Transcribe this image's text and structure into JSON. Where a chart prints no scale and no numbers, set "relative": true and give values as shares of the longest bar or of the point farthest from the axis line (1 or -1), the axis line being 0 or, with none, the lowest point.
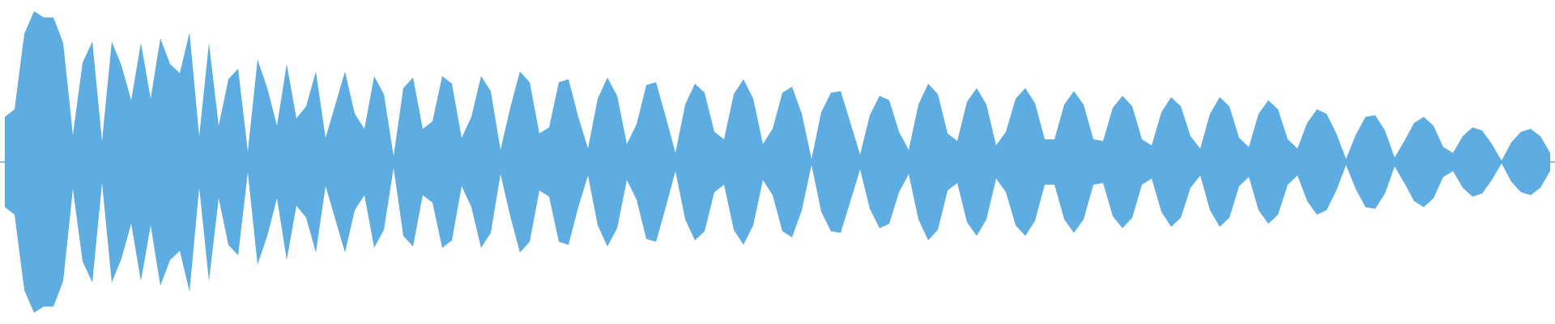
{
  "chart_data": {
    "type": "area",
    "relative": true,
    "ref_lines": [
      {
        "axis": "y",
        "value": 0,
        "color": "#5dade2"
      }
    ],
    "categories": [
      null,
      null,
      null,
      null,
      null,
      null,
      null,
      null,
      null,
      null,
      null,
      null,
      null,
      null,
      null,
      null,
      null,
      null,
      null,
      null,
      null,
      null,
      null,
      null,
      null,
      null,
      null,
      null,
      null,
      null,
      null,
      null,
      null,
      null,
      null,
      null,
      null,
      null,
      null,
      null,
      null,
      null,
      null,
      null,
      null,
      null,
      null,
      null,
      null,
      null,
      null,
      null,
      null,
      null,
      null,
      null,
      null,
      null,
      null,
      null,
      null,
      null,
      null,
      null,
      null,
      null,
      null,
      null,
      null,
      null,
      null,
      null,
      null,
      null,
      null,
      null,
      null,
      null,
      null,
      null,
      null,
      null,
      null,
      null,
      null,
      null,
      null,
      null,
      null,
      null,
      null,
      null,
      null,
      null,
      null,
      null,
      null,
      null,
      null,
      null,
      null,
      null,
      null,
      null,
      null,
      null,
      null,
      null,
      null,
      null,
      null,
      null,
      null,
      null,
      null,
      null,
      null,
      null,
      null,
      null,
      null,
      null,
      null,
      null,
      null,
      null,
      null,
      null,
      null,
      null,
      null,
      null,
      null,
      null,
      null,
      null,
      null,
      null,
      null,
      null,
      null,
      null,
      null,
      null,
      null,
      null,
      null,
      null,
      null,
      null,
      null,
      null,
      null,
      null,
      null,
      null,
      null,
      null,
      null,
      null
    ],
    "series": [
      {
        "color": "#5dade2",
        "values": [
          0.3,
          0.35,
          0.85,
          1.0,
          0.96,
          0.96,
          0.79,
          0.18,
          0.66,
          0.8,
          0.14,
          0.8,
          0.64,
          0.41,
          0.79,
          0.42,
          0.82,
          0.65,
          0.59,
          0.86,
          0.17,
          0.79,
          0.24,
          0.55,
          0.62,
          0.07,
          0.68,
          0.49,
          0.24,
          0.65,
          0.29,
          0.37,
          0.6,
          0.16,
          0.38,
          0.6,
          0.32,
          0.22,
          0.57,
          0.45,
          0.04,
          0.49,
          0.56,
          0.22,
          0.27,
          0.57,
          0.52,
          0.16,
          0.3,
          0.57,
          0.47,
          0.08,
          0.36,
          0.6,
          0.53,
          0.19,
          0.23,
          0.53,
          0.55,
          0.3,
          0.09,
          0.42,
          0.56,
          0.44,
          0.12,
          0.25,
          0.51,
          0.53,
          0.3,
          0.06,
          0.38,
          0.52,
          0.46,
          0.2,
          0.15,
          0.45,
          0.55,
          0.42,
          0.12,
          0.22,
          0.46,
          0.5,
          0.32,
          0.02,
          0.33,
          0.46,
          0.47,
          0.26,
          0.05,
          0.31,
          0.44,
          0.41,
          0.2,
          0.08,
          0.38,
          0.52,
          0.45,
          0.19,
          0.14,
          0.4,
          0.49,
          0.38,
          0.11,
          0.2,
          0.42,
          0.49,
          0.39,
          0.15,
          0.15,
          0.38,
          0.47,
          0.38,
          0.15,
          0.14,
          0.36,
          0.44,
          0.37,
          0.15,
          0.11,
          0.33,
          0.43,
          0.37,
          0.17,
          0.09,
          0.32,
          0.43,
          0.37,
          0.16,
          0.1,
          0.32,
          0.41,
          0.35,
          0.15,
          0.09,
          0.26,
          0.35,
          0.32,
          0.19,
          0.02,
          0.18,
          0.3,
          0.31,
          0.21,
          0.03,
          0.14,
          0.26,
          0.3,
          0.24,
          0.1,
          0.06,
          0.17,
          0.23,
          0.21,
          0.12,
          0.01,
          0.13,
          0.2,
          0.22,
          0.17,
          0.06
        ]
      },
      {
        "color": "#5dade2",
        "values": [
          -0.3,
          -0.35,
          -0.85,
          -1.0,
          -0.96,
          -0.96,
          -0.79,
          -0.18,
          -0.66,
          -0.8,
          -0.14,
          -0.8,
          -0.64,
          -0.41,
          -0.79,
          -0.42,
          -0.82,
          -0.65,
          -0.59,
          -0.86,
          -0.17,
          -0.79,
          -0.24,
          -0.55,
          -0.62,
          -0.07,
          -0.68,
          -0.49,
          -0.24,
          -0.65,
          -0.29,
          -0.37,
          -0.6,
          -0.16,
          -0.38,
          -0.6,
          -0.32,
          -0.22,
          -0.57,
          -0.45,
          -0.04,
          -0.49,
          -0.56,
          -0.22,
          -0.27,
          -0.57,
          -0.52,
          -0.16,
          -0.3,
          -0.57,
          -0.47,
          -0.08,
          -0.36,
          -0.6,
          -0.53,
          -0.19,
          -0.23,
          -0.53,
          -0.55,
          -0.3,
          -0.09,
          -0.42,
          -0.56,
          -0.44,
          -0.12,
          -0.25,
          -0.51,
          -0.53,
          -0.3,
          -0.06,
          -0.38,
          -0.52,
          -0.46,
          -0.2,
          -0.15,
          -0.45,
          -0.55,
          -0.42,
          -0.12,
          -0.22,
          -0.46,
          -0.5,
          -0.32,
          -0.02,
          -0.33,
          -0.46,
          -0.47,
          -0.26,
          -0.05,
          -0.31,
          -0.44,
          -0.41,
          -0.2,
          -0.08,
          -0.38,
          -0.52,
          -0.45,
          -0.19,
          -0.14,
          -0.4,
          -0.49,
          -0.38,
          -0.11,
          -0.2,
          -0.42,
          -0.49,
          -0.39,
          -0.15,
          -0.15,
          -0.38,
          -0.47,
          -0.38,
          -0.15,
          -0.14,
          -0.36,
          -0.44,
          -0.37,
          -0.15,
          -0.11,
          -0.33,
          -0.43,
          -0.37,
          -0.17,
          -0.09,
          -0.32,
          -0.43,
          -0.37,
          -0.16,
          -0.1,
          -0.32,
          -0.41,
          -0.35,
          -0.15,
          -0.09,
          -0.26,
          -0.35,
          -0.32,
          -0.19,
          -0.02,
          -0.18,
          -0.3,
          -0.31,
          -0.21,
          -0.03,
          -0.14,
          -0.26,
          -0.3,
          -0.24,
          -0.1,
          -0.06,
          -0.17,
          -0.23,
          -0.21,
          -0.12,
          -0.01,
          -0.13,
          -0.2,
          -0.22,
          -0.17,
          -0.06
        ]
      }
    ]
  }
}
